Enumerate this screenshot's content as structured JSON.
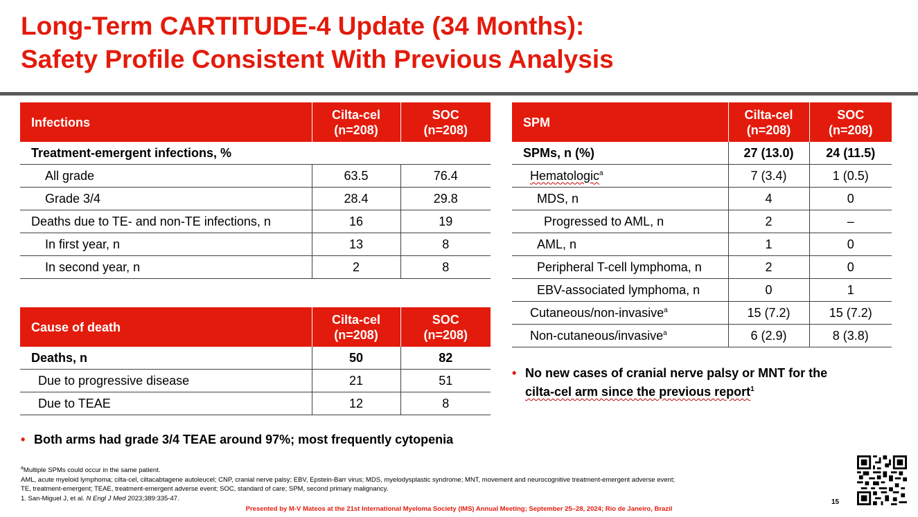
{
  "title": {
    "line1": "Long-Term CARTITUDE-4 Update (34 Months):",
    "line2": "Safety Profile Consistent With Previous Analysis"
  },
  "infections_table": {
    "header": [
      "Infections",
      "Cilta-cel\n(n=208)",
      "SOC\n(n=208)"
    ],
    "section": "Treatment-emergent infections, %",
    "rows": [
      {
        "label": "All grade",
        "a": "63.5",
        "b": "76.4"
      },
      {
        "label": "Grade 3/4",
        "a": "28.4",
        "b": "29.8"
      },
      {
        "label": "Deaths due to TE- and non-TE infections, n",
        "a": "16",
        "b": "19"
      },
      {
        "label": "In first year, n",
        "a": "13",
        "b": "8"
      },
      {
        "label": "In second year, n",
        "a": "2",
        "b": "8"
      }
    ]
  },
  "death_table": {
    "header": [
      "Cause of death",
      "Cilta-cel\n(n=208)",
      "SOC\n(n=208)"
    ],
    "rows": [
      {
        "label": "Deaths, n",
        "a": "50",
        "b": "82"
      },
      {
        "label": "Due to progressive disease",
        "a": "21",
        "b": "51"
      },
      {
        "label": "Due to TEAE",
        "a": "12",
        "b": "8"
      }
    ]
  },
  "spm_table": {
    "header": [
      "SPM",
      "Cilta-cel\n(n=208)",
      "SOC\n(n=208)"
    ],
    "rows": [
      {
        "label": "SPMs, n (%)",
        "a": "27 (13.0)",
        "b": "24 (11.5)"
      },
      {
        "label": "Hematologic",
        "sup": "a",
        "a": "7 (3.4)",
        "b": "1 (0.5)"
      },
      {
        "label": "MDS, n",
        "a": "4",
        "b": "0"
      },
      {
        "label": "Progressed to AML, n",
        "a": "2",
        "b": "–"
      },
      {
        "label": "AML, n",
        "a": "1",
        "b": "0"
      },
      {
        "label": "Peripheral T-cell lymphoma, n",
        "a": "2",
        "b": "0"
      },
      {
        "label": "EBV-associated lymphoma, n",
        "a": "0",
        "b": "1"
      },
      {
        "label": "Cutaneous/non-invasive",
        "sup": "a",
        "a": "15 (7.2)",
        "b": "15 (7.2)"
      },
      {
        "label": "Non-cutaneous/invasive",
        "sup": "a",
        "a": "6 (2.9)",
        "b": "8 (3.8)"
      }
    ]
  },
  "bullets": {
    "left": "Both arms had grade 3/4 TEAE around 97%; most frequently cytopenia",
    "right_line1": "No new cases of cranial nerve palsy or MNT for the",
    "right_line2": "cilta-cel arm since the previous report",
    "right_sup": "1"
  },
  "footnotes": {
    "sup_a": "a",
    "line1": "Multiple SPMs could occur in the same patient.",
    "line2": "AML, acute myeloid lymphoma; cilta-cel, ciltacabtagene autoleucel; CNP, cranial nerve palsy; EBV, Epstein-Barr virus; MDS, myelodysplastic syndrome; MNT, movement and neurocognitive treatment-emergent adverse event;",
    "line3": "TE, treatment-emergent; TEAE, treatment-emergent adverse event; SOC, standard of care; SPM, second primary malignancy.",
    "line4_pre": "1. San-Miguel J, et al. ",
    "line4_journal": "N Engl J Med",
    "line4_post": " 2023;389:335-47."
  },
  "presented_by": "Presented by M-V Mateos at the 21st International Myeloma Society (IMS) Annual Meeting; September 25–28, 2024; Rio de Janeiro, Brazil",
  "page_number": "15",
  "colors": {
    "accent": "#e31b0c",
    "rule": "#595959"
  }
}
